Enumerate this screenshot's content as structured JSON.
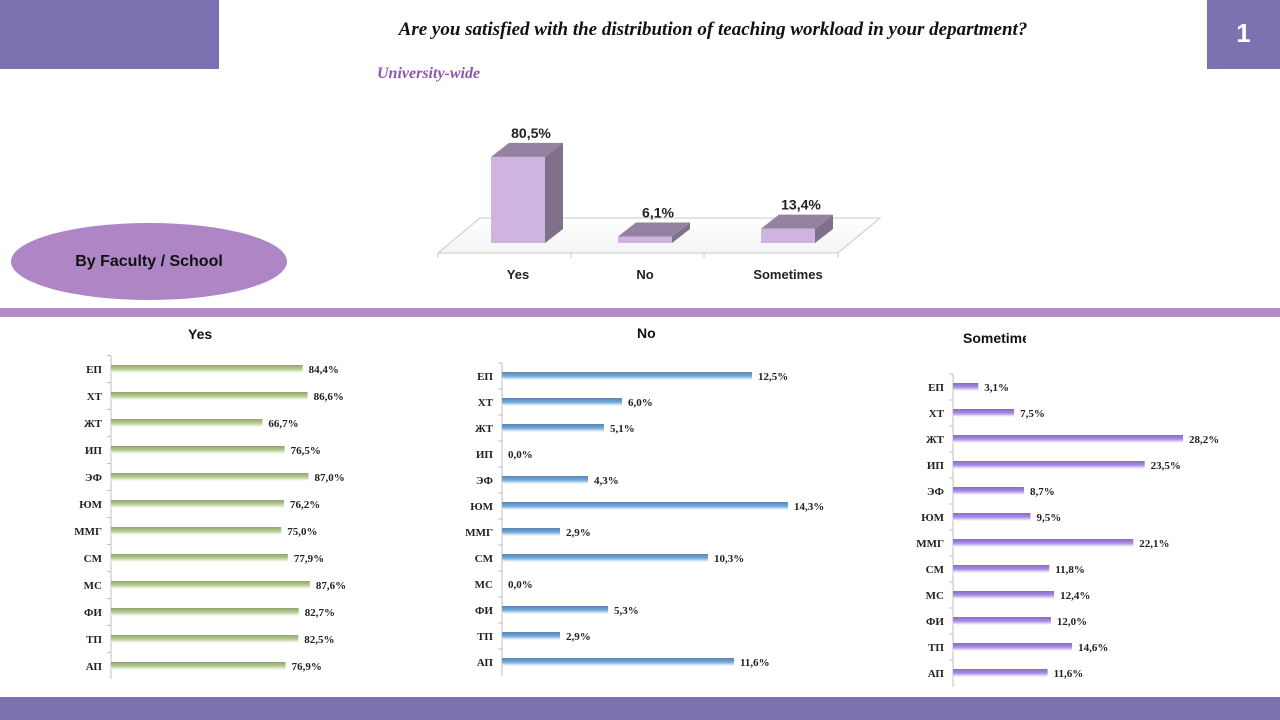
{
  "header": {
    "title": "Are you satisfied with the distribution of teaching workload in your department?",
    "slide_number": "1",
    "subtitle": "University-wide",
    "subtitle_color": "#8a58b0"
  },
  "section_label": "By Faculty / School",
  "chart_data": [
    {
      "type": "bar",
      "id": "university-wide",
      "categories": [
        "Yes",
        "No",
        "Sometimes"
      ],
      "values": [
        80.5,
        6.1,
        13.4
      ],
      "labels": [
        "80,5%",
        "6,1%",
        "13,4%"
      ],
      "ylim": [
        0,
        100
      ],
      "color": "#cfb4e0"
    },
    {
      "type": "bar",
      "orientation": "horizontal",
      "id": "yes",
      "title": "Yes",
      "categories": [
        "ЕП",
        "ХТ",
        "ЖТ",
        "ИП",
        "ЭФ",
        "ЮМ",
        "ММГ",
        "СМ",
        "МС",
        "ФИ",
        "ТП",
        "АП"
      ],
      "values": [
        84.4,
        86.6,
        66.7,
        76.5,
        87.0,
        76.2,
        75.0,
        77.9,
        87.6,
        82.7,
        82.5,
        76.9
      ],
      "labels": [
        "84,4%",
        "86,6%",
        "66,7%",
        "76,5%",
        "87,0%",
        "76,2%",
        "75,0%",
        "77,9%",
        "87,6%",
        "82,7%",
        "82,5%",
        "76,9%"
      ],
      "xlim": [
        0,
        100
      ],
      "color": "#b5cc8e"
    },
    {
      "type": "bar",
      "orientation": "horizontal",
      "id": "no",
      "title": "No",
      "categories": [
        "ЕП",
        "ХТ",
        "ЖТ",
        "ИП",
        "ЭФ",
        "ЮМ",
        "ММГ",
        "СМ",
        "МС",
        "ФИ",
        "ТП",
        "АП"
      ],
      "values": [
        12.5,
        6.0,
        5.1,
        0.0,
        4.3,
        14.3,
        2.9,
        10.3,
        0.0,
        5.3,
        2.9,
        11.6
      ],
      "labels": [
        "12,5%",
        "6,0%",
        "5,1%",
        "0,0%",
        "4,3%",
        "14,3%",
        "2,9%",
        "10,3%",
        "0,0%",
        "5,3%",
        "2,9%",
        "11,6%"
      ],
      "xlim": [
        0,
        14
      ],
      "color": "#6fa8dc"
    },
    {
      "type": "bar",
      "orientation": "horizontal",
      "id": "sometimes",
      "title": "Sometime",
      "categories": [
        "ЕП",
        "ХТ",
        "ЖТ",
        "ИП",
        "ЭФ",
        "ЮМ",
        "ММГ",
        "СМ",
        "МС",
        "ФИ",
        "ТП",
        "АП"
      ],
      "values": [
        3.1,
        7.5,
        28.2,
        23.5,
        8.7,
        9.5,
        22.1,
        11.8,
        12.4,
        12.0,
        14.6,
        11.6
      ],
      "labels": [
        "3,1%",
        "7,5%",
        "28,2%",
        "23,5%",
        "8,7%",
        "9,5%",
        "22,1%",
        "11,8%",
        "12,4%",
        "12,0%",
        "14,6%",
        "11,6%"
      ],
      "xlim": [
        0,
        28.2
      ],
      "color": "#a98ae6"
    }
  ]
}
